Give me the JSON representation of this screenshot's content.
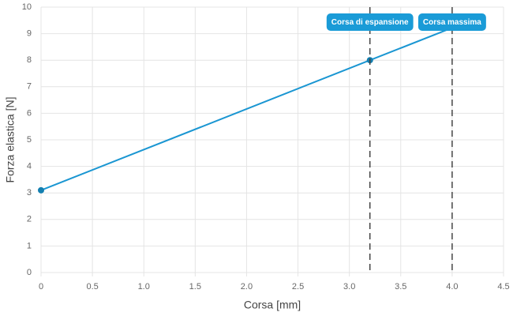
{
  "chart_data": {
    "type": "line",
    "x": [
      0,
      3.2,
      4.0
    ],
    "values": [
      3.1,
      8.0,
      9.22
    ],
    "markers": [
      true,
      true,
      false
    ],
    "color": "#1a96d2",
    "xlabel": "Corsa [mm]",
    "ylabel": "Forza elastica [N]",
    "xlim": [
      0,
      4.5
    ],
    "xticks": [
      0,
      0.5,
      {
        "value": 1,
        "label": "1.0"
      },
      1.5,
      {
        "value": 2,
        "label": "2.0"
      },
      2.5,
      {
        "value": 3,
        "label": "3.0"
      },
      3.5,
      {
        "value": 4,
        "label": "4.0"
      },
      4.5
    ],
    "ylim": [
      0,
      10
    ],
    "yticks": [
      0,
      1,
      2,
      3,
      4,
      5,
      6,
      7,
      8,
      9,
      10
    ],
    "grid": true,
    "annotations": [
      {
        "x": 3.2,
        "label": "Corsa di espansione"
      },
      {
        "x": 4.0,
        "label": "Corsa massima"
      }
    ]
  }
}
